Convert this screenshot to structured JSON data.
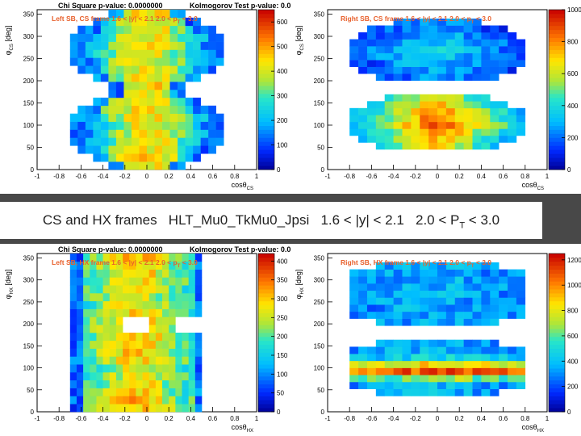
{
  "caption": {
    "prefix": "CS and HX frames",
    "trigger": "HLT_Mu0_TkMu0_Jpsi",
    "rapidity": "1.6 < |y| < 2.1",
    "pt_lo": "2.0 < P",
    "pt_sub": "T",
    "pt_hi": " < 3.0"
  },
  "stats": {
    "chi2": "Chi Square p-value: 0.0000000",
    "ks": "Kolmogorov Test p-value: 0.0000000"
  },
  "chart_data": [
    {
      "type": "heatmap",
      "title": "Left SB, CS frame, 1.6 < |y| < 2.1, 2.0 < p_T < 3.0",
      "title_visible": "Left SB, CS frame  1.6 < |y| < 2.1  2.0 < p",
      "title_sub": "T",
      "title_tail": " < 3.0",
      "xlabel": "cosθ",
      "xlabel_sub": "CS",
      "ylabel": "φ",
      "ylabel_sub": "CS",
      "ylabel_unit": " [deg]",
      "xlim": [
        -1,
        1
      ],
      "ylim": [
        0,
        360
      ],
      "zlim": [
        0,
        650
      ],
      "x_ticks": [
        "-1",
        "-0.8",
        "-0.6",
        "-0.4",
        "-0.2",
        "0",
        "0.2",
        "0.4",
        "0.6",
        "0.8",
        "1"
      ],
      "y_ticks": [
        "0",
        "50",
        "100",
        "150",
        "200",
        "250",
        "300",
        "350"
      ],
      "z_ticks": [
        "0",
        "100",
        "200",
        "300",
        "400",
        "500",
        "600"
      ],
      "grid": {
        "nx": 20,
        "ny": 20,
        "x_from": -0.7,
        "x_to": 0.7,
        "y_from": 0,
        "y_to": 360
      },
      "shape": "hourglass",
      "peak": 640
    },
    {
      "type": "heatmap",
      "title": "Right SB, CS frame, 1.6 < |y| < 2.1, 2.0 < p_T < 3.0",
      "title_visible": "Right SB, CS frame  1.6 < |y| < 2.1  2.0 < p",
      "title_sub": "T",
      "title_tail": " < 3.0",
      "xlabel": "cosθ",
      "xlabel_sub": "CS",
      "ylabel": "φ",
      "ylabel_sub": "CS",
      "ylabel_unit": " [deg]",
      "xlim": [
        -1,
        1
      ],
      "ylim": [
        0,
        360
      ],
      "zlim": [
        0,
        1000
      ],
      "x_ticks": [
        "-1",
        "-0.8",
        "-0.6",
        "-0.4",
        "-0.2",
        "0",
        "0.2",
        "0.4",
        "0.6",
        "0.8",
        "1"
      ],
      "y_ticks": [
        "0",
        "50",
        "100",
        "150",
        "200",
        "250",
        "300",
        "350"
      ],
      "z_ticks": [
        "0",
        "200",
        "400",
        "600",
        "800",
        "1000"
      ],
      "grid": {
        "nx": 20,
        "ny": 20,
        "x_from": -0.8,
        "x_to": 0.8,
        "y_from": 30,
        "y_to": 340
      },
      "shape": "two-lobes",
      "peak": 960
    },
    {
      "type": "heatmap",
      "title": "Left SB, HX frame, 1.6 < |y| < 2.1, 2.0 < p_T < 3.0",
      "title_visible": "Left SB, HX frame  1.6 < |y| < 2.1  2.0 < p",
      "title_sub": "T",
      "title_tail": " < 3.0",
      "xlabel": "cosθ",
      "xlabel_sub": "HX",
      "ylabel": "φ",
      "ylabel_sub": "HX",
      "ylabel_unit": " [deg]",
      "xlim": [
        -1,
        1
      ],
      "ylim": [
        0,
        360
      ],
      "zlim": [
        0,
        420
      ],
      "x_ticks": [
        "-1",
        "-0.8",
        "-0.6",
        "-0.4",
        "-0.2",
        "0",
        "0.2",
        "0.4",
        "0.6",
        "0.8",
        "1"
      ],
      "y_ticks": [
        "0",
        "50",
        "100",
        "150",
        "200",
        "250",
        "300",
        "350"
      ],
      "z_ticks": [
        "0",
        "50",
        "100",
        "150",
        "200",
        "250",
        "300",
        "350",
        "400"
      ],
      "grid": {
        "nx": 20,
        "ny": 20,
        "x_from": -0.7,
        "x_to": 0.5,
        "y_from": 0,
        "y_to": 360
      },
      "shape": "left-hx",
      "peak": 410
    },
    {
      "type": "heatmap",
      "title": "Right SB, HX frame, 1.6 < |y| < 2.1, 2.0 < p_T < 3.0",
      "title_visible": "Right SB, HX frame  1.6 < |y| < 2.1  2.0 < p",
      "title_sub": "T",
      "title_tail": " < 3.0",
      "xlabel": "cosθ",
      "xlabel_sub": "HX",
      "ylabel": "φ",
      "ylabel_sub": "HX",
      "ylabel_unit": " [deg]",
      "xlim": [
        -1,
        1
      ],
      "ylim": [
        0,
        360
      ],
      "zlim": [
        0,
        1250
      ],
      "x_ticks": [
        "-1",
        "-0.8",
        "-0.6",
        "-0.4",
        "-0.2",
        "0",
        "0.2",
        "0.4",
        "0.6",
        "0.8",
        "1"
      ],
      "y_ticks": [
        "0",
        "50",
        "100",
        "150",
        "200",
        "250",
        "300",
        "350"
      ],
      "z_ticks": [
        "0",
        "200",
        "400",
        "600",
        "800",
        "1000",
        "1200"
      ],
      "grid": {
        "nx": 20,
        "ny": 20,
        "x_from": -0.8,
        "x_to": 0.8,
        "y_from": 20,
        "y_to": 340
      },
      "shape": "right-hx",
      "peak": 1230
    }
  ]
}
